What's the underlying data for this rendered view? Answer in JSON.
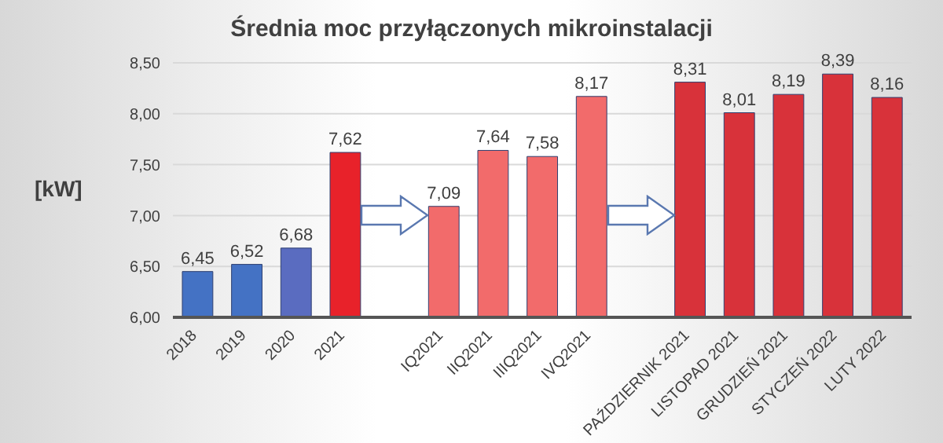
{
  "chart_data": {
    "type": "bar",
    "title": "Średnia moc przyłączonych mikroinstalacji",
    "ylabel": "[kW]",
    "categories": [
      "2018",
      "2019",
      "2020",
      "2021",
      null,
      "IQ2021",
      "IIQ2021",
      "IIIQ2021",
      "IVQ2021",
      null,
      "PAŹDZIERNIK 2021",
      "LISTOPAD 2021",
      "GRUDZIEŃ 2021",
      "STYCZEŃ 2022",
      "LUTY 2022"
    ],
    "values": [
      6.45,
      6.52,
      6.68,
      7.62,
      null,
      7.09,
      7.64,
      7.58,
      8.17,
      null,
      8.31,
      8.01,
      8.19,
      8.39,
      8.16
    ],
    "value_labels": [
      "6,45",
      "6,52",
      "6,68",
      "7,62",
      null,
      "7,09",
      "7,64",
      "7,58",
      "8,17",
      null,
      "8,31",
      "8,01",
      "8,19",
      "8,39",
      "8,16"
    ],
    "colors": [
      "#4472c4",
      "#4472c4",
      "#5a6cc0",
      "#e8222a",
      "#ffffff",
      "#f26b6b",
      "#f26b6b",
      "#f26b6b",
      "#f26b6b",
      "#ffffff",
      "#d8323a",
      "#d8323a",
      "#d8323a",
      "#d8323a",
      "#d8323a"
    ],
    "ylim": [
      6,
      8.5
    ],
    "yticks": [
      {
        "value": 6,
        "label": "6,00"
      },
      {
        "value": 6.5,
        "label": "6,50"
      },
      {
        "value": 7,
        "label": "7,00"
      },
      {
        "value": 7.5,
        "label": "7,50"
      },
      {
        "value": 8,
        "label": "8,00"
      },
      {
        "value": 8.5,
        "label": "8,50"
      }
    ],
    "grid": "y"
  }
}
